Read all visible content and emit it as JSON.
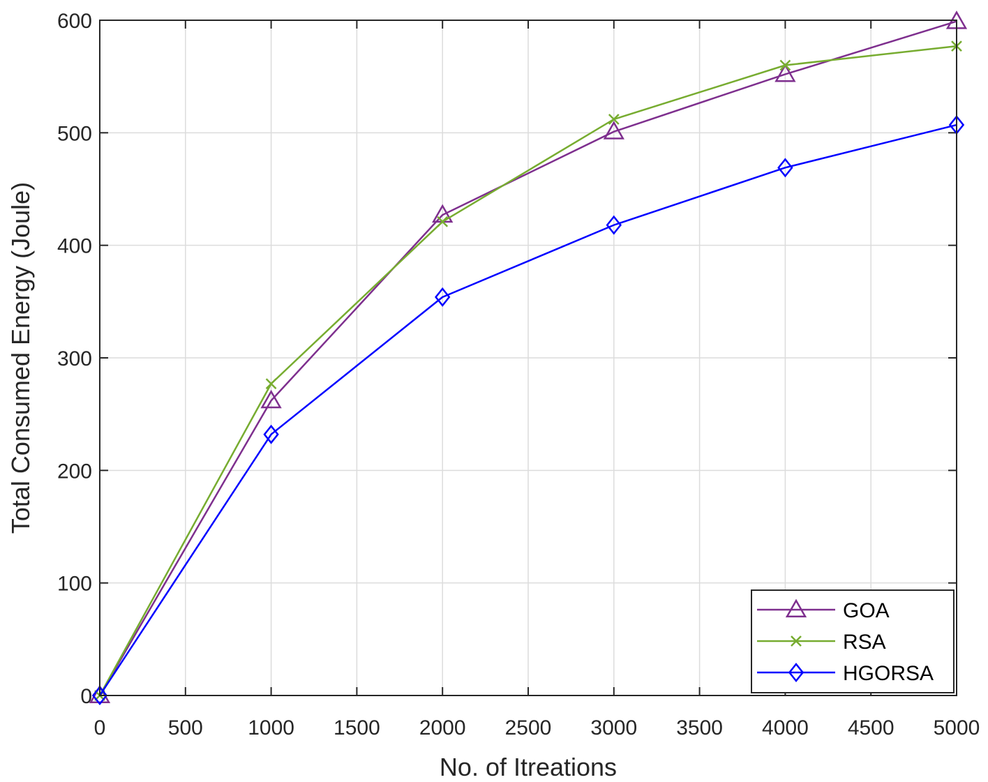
{
  "chart_data": {
    "type": "line",
    "title": "",
    "xlabel": "No. of Itreations",
    "ylabel": "Total Consumed Energy (Joule)",
    "xlim": [
      0,
      5000
    ],
    "ylim": [
      0,
      600
    ],
    "x_ticks": [
      0,
      500,
      1000,
      1500,
      2000,
      2500,
      3000,
      3500,
      4000,
      4500,
      5000
    ],
    "y_ticks": [
      0,
      100,
      200,
      300,
      400,
      500,
      600
    ],
    "grid": true,
    "legend_position": "bottom-right",
    "x": [
      0,
      1000,
      2000,
      3000,
      4000,
      5000
    ],
    "series": [
      {
        "name": "GOA",
        "values": [
          0,
          262,
          427,
          501,
          552,
          599
        ],
        "color": "#7e2f8e",
        "marker": "triangle"
      },
      {
        "name": "RSA",
        "values": [
          0,
          277,
          421,
          512,
          560,
          577
        ],
        "color": "#77ac30",
        "marker": "x"
      },
      {
        "name": "HGORSA",
        "values": [
          0,
          232,
          354,
          418,
          469,
          507
        ],
        "color": "#0000ff",
        "marker": "diamond"
      }
    ]
  }
}
